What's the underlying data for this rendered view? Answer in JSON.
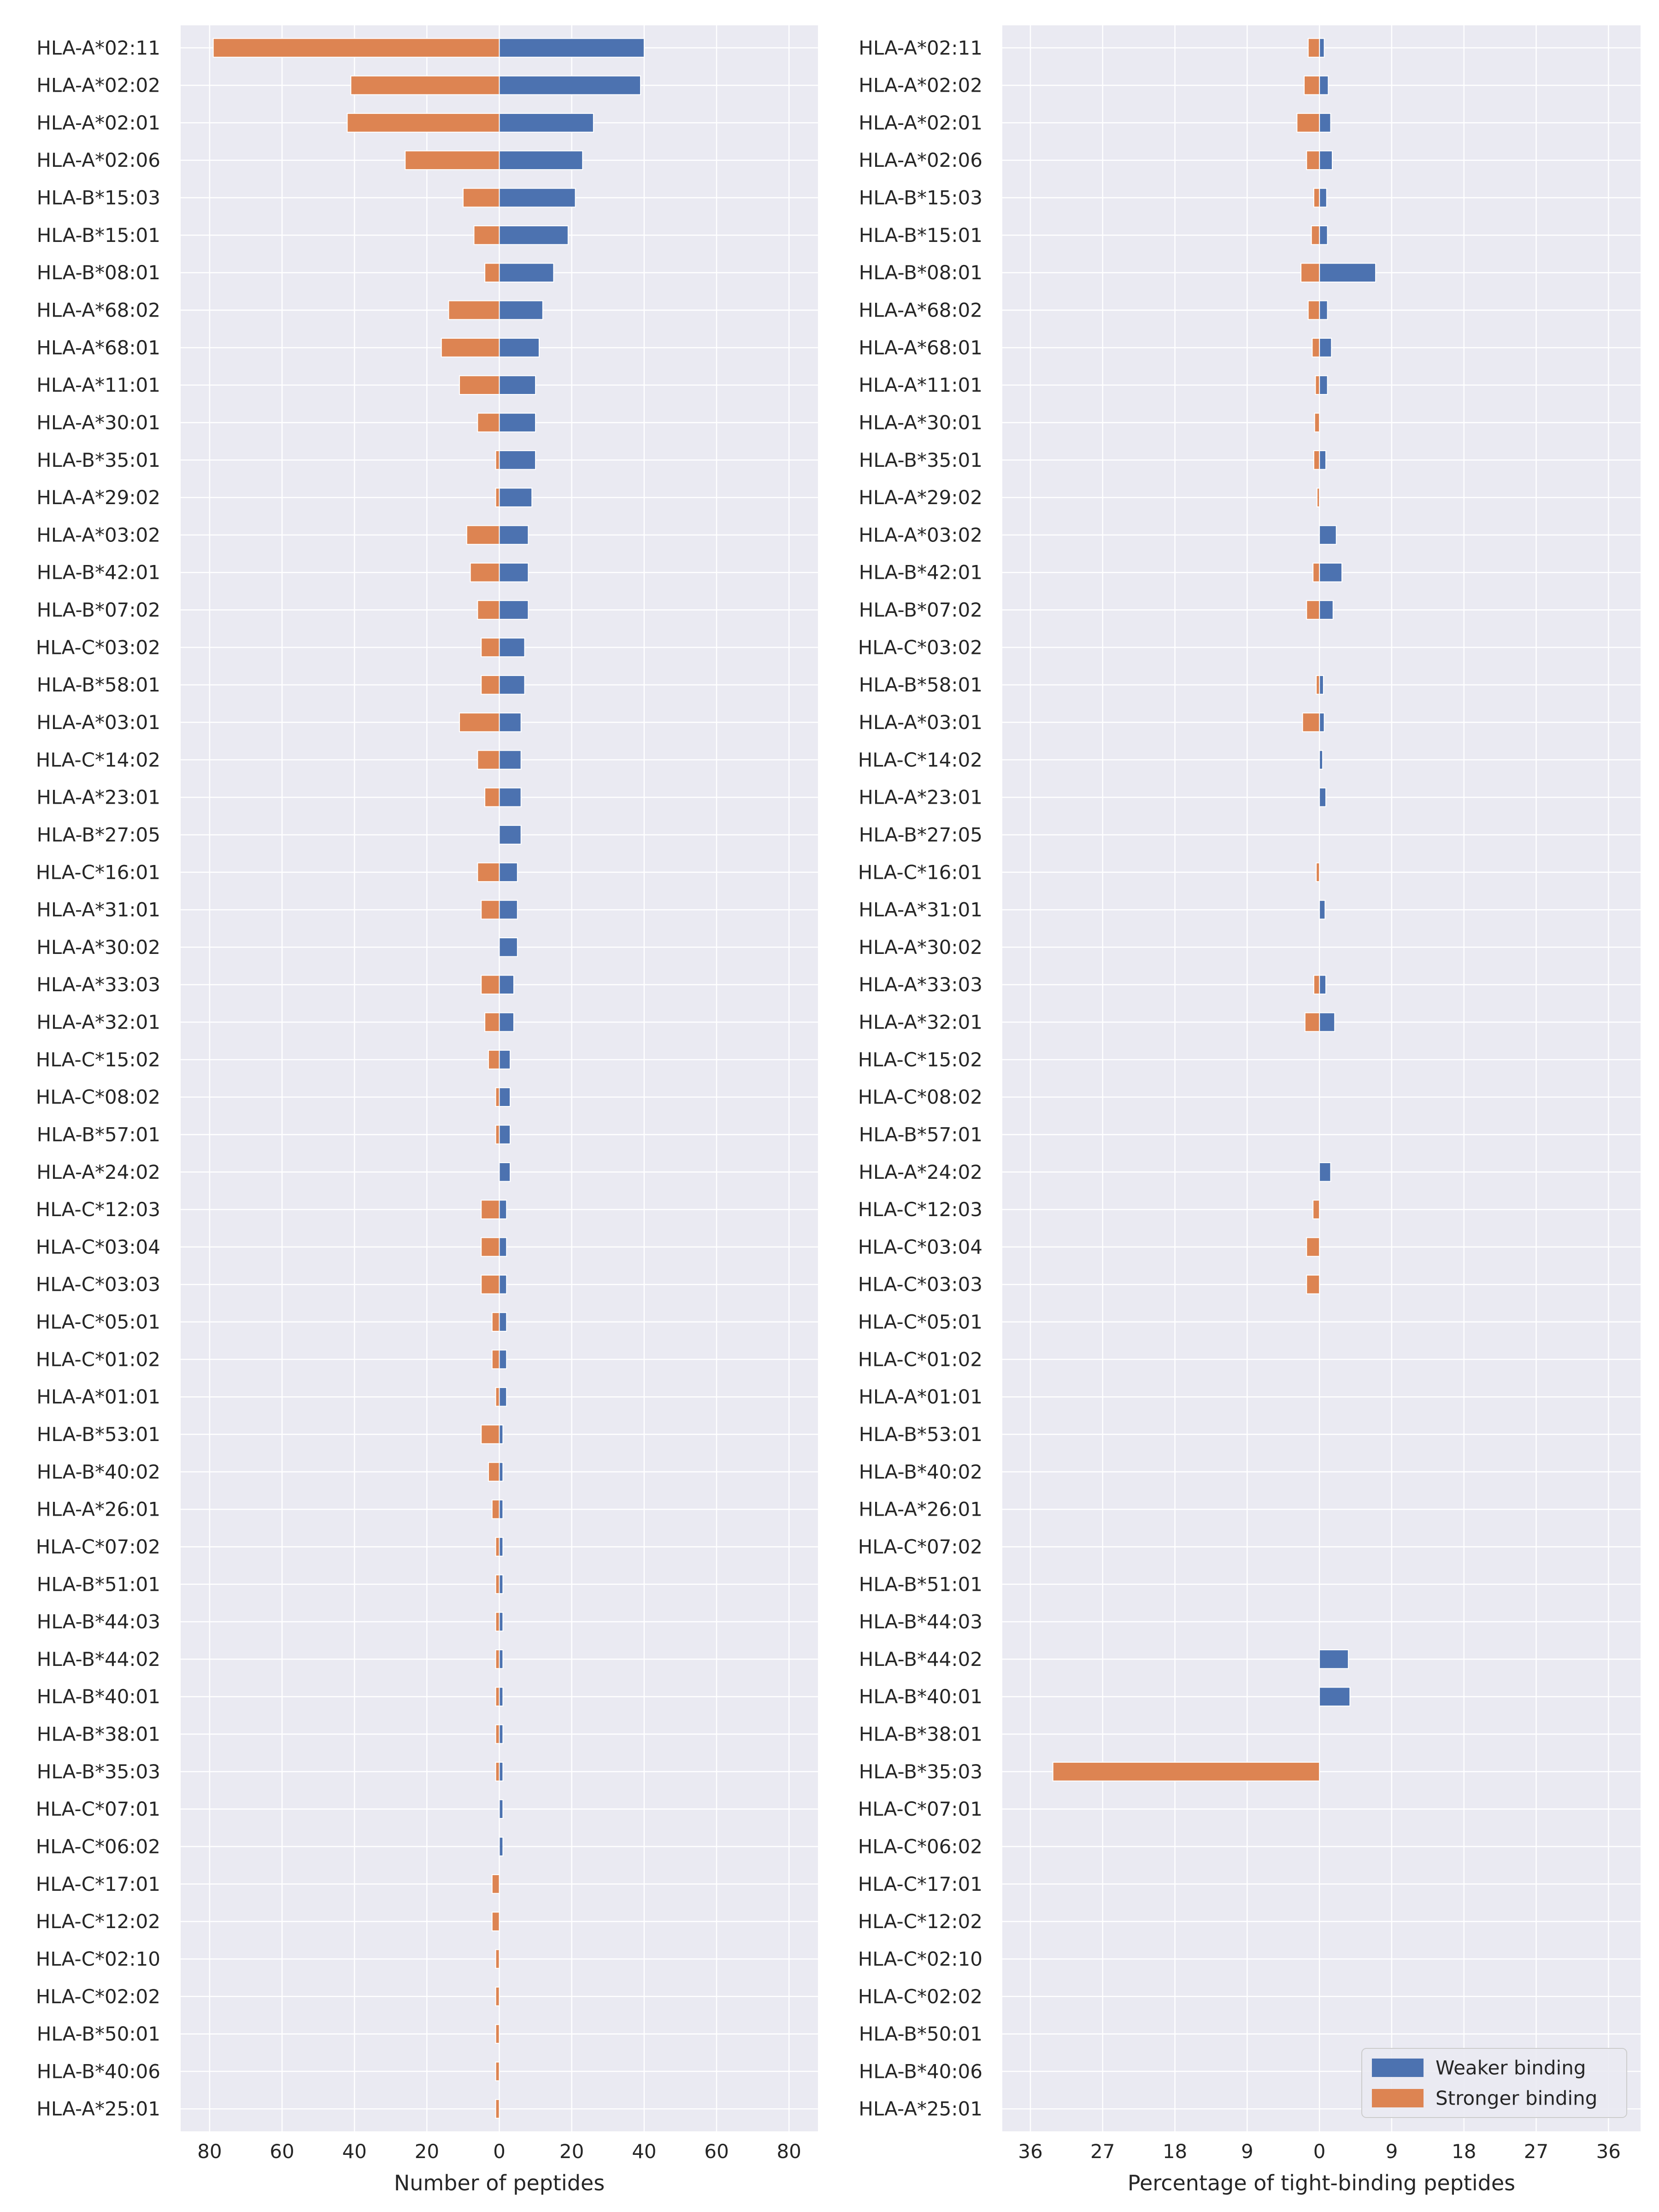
{
  "colors": {
    "weaker": "#4c72b0",
    "stronger": "#dd8452",
    "panel_bg": "#eaeaf2",
    "grid": "#ffffff",
    "text": "#262626"
  },
  "chart_data": [
    {
      "type": "bar",
      "orientation": "horizontal",
      "layout": "diverging",
      "xlabel": "Number of peptides",
      "xlim": [
        -88,
        88
      ],
      "xtick_values": [
        -80,
        -60,
        -40,
        -20,
        0,
        20,
        40,
        60,
        80
      ],
      "xtick_labels": [
        "80",
        "60",
        "40",
        "20",
        "0",
        "20",
        "40",
        "60",
        "80"
      ],
      "grid": true,
      "categories": [
        "HLA-A*02:11",
        "HLA-A*02:02",
        "HLA-A*02:01",
        "HLA-A*02:06",
        "HLA-B*15:03",
        "HLA-B*15:01",
        "HLA-B*08:01",
        "HLA-A*68:02",
        "HLA-A*68:01",
        "HLA-A*11:01",
        "HLA-A*30:01",
        "HLA-B*35:01",
        "HLA-A*29:02",
        "HLA-A*03:02",
        "HLA-B*42:01",
        "HLA-B*07:02",
        "HLA-C*03:02",
        "HLA-B*58:01",
        "HLA-A*03:01",
        "HLA-C*14:02",
        "HLA-A*23:01",
        "HLA-B*27:05",
        "HLA-C*16:01",
        "HLA-A*31:01",
        "HLA-A*30:02",
        "HLA-A*33:03",
        "HLA-A*32:01",
        "HLA-C*15:02",
        "HLA-C*08:02",
        "HLA-B*57:01",
        "HLA-A*24:02",
        "HLA-C*12:03",
        "HLA-C*03:04",
        "HLA-C*03:03",
        "HLA-C*05:01",
        "HLA-C*01:02",
        "HLA-A*01:01",
        "HLA-B*53:01",
        "HLA-B*40:02",
        "HLA-A*26:01",
        "HLA-C*07:02",
        "HLA-B*51:01",
        "HLA-B*44:03",
        "HLA-B*44:02",
        "HLA-B*40:01",
        "HLA-B*38:01",
        "HLA-B*35:03",
        "HLA-C*07:01",
        "HLA-C*06:02",
        "HLA-C*17:01",
        "HLA-C*12:02",
        "HLA-C*02:10",
        "HLA-C*02:02",
        "HLA-B*50:01",
        "HLA-B*40:06",
        "HLA-A*25:01"
      ],
      "series": [
        {
          "name": "Weaker binding",
          "color": "#4c72b0",
          "direction": "right",
          "values": [
            40,
            39,
            26,
            23,
            21,
            19,
            15,
            12,
            11,
            10,
            10,
            10,
            9,
            8,
            8,
            8,
            7,
            7,
            6,
            6,
            6,
            6,
            5,
            5,
            5,
            4,
            4,
            3,
            3,
            3,
            3,
            2,
            2,
            2,
            2,
            2,
            2,
            1,
            1,
            1,
            1,
            1,
            1,
            1,
            1,
            1,
            1,
            1,
            1,
            0,
            0,
            0,
            0,
            0,
            0,
            0
          ]
        },
        {
          "name": "Stronger binding",
          "color": "#dd8452",
          "direction": "left",
          "values": [
            79,
            41,
            42,
            26,
            10,
            7,
            4,
            14,
            16,
            11,
            6,
            1,
            1,
            9,
            8,
            6,
            5,
            5,
            11,
            6,
            4,
            0,
            6,
            5,
            0,
            5,
            4,
            3,
            1,
            1,
            0,
            5,
            5,
            5,
            2,
            2,
            1,
            5,
            3,
            2,
            1,
            1,
            1,
            1,
            1,
            1,
            1,
            0,
            0,
            2,
            2,
            1,
            1,
            1,
            1,
            1
          ]
        }
      ]
    },
    {
      "type": "bar",
      "orientation": "horizontal",
      "layout": "diverging",
      "xlabel": "Percentage of tight-binding peptides",
      "xlim": [
        -39.5,
        40
      ],
      "xtick_values": [
        -36,
        -27,
        -18,
        -9,
        0,
        9,
        18,
        27,
        36
      ],
      "xtick_labels": [
        "36",
        "27",
        "18",
        "9",
        "0",
        "9",
        "18",
        "27",
        "36"
      ],
      "grid": true,
      "legend": {
        "position": "bottom-right",
        "entries": [
          "Weaker binding",
          "Stronger binding"
        ]
      },
      "categories": [
        "HLA-A*02:11",
        "HLA-A*02:02",
        "HLA-A*02:01",
        "HLA-A*02:06",
        "HLA-B*15:03",
        "HLA-B*15:01",
        "HLA-B*08:01",
        "HLA-A*68:02",
        "HLA-A*68:01",
        "HLA-A*11:01",
        "HLA-A*30:01",
        "HLA-B*35:01",
        "HLA-A*29:02",
        "HLA-A*03:02",
        "HLA-B*42:01",
        "HLA-B*07:02",
        "HLA-C*03:02",
        "HLA-B*58:01",
        "HLA-A*03:01",
        "HLA-C*14:02",
        "HLA-A*23:01",
        "HLA-B*27:05",
        "HLA-C*16:01",
        "HLA-A*31:01",
        "HLA-A*30:02",
        "HLA-A*33:03",
        "HLA-A*32:01",
        "HLA-C*15:02",
        "HLA-C*08:02",
        "HLA-B*57:01",
        "HLA-A*24:02",
        "HLA-C*12:03",
        "HLA-C*03:04",
        "HLA-C*03:03",
        "HLA-C*05:01",
        "HLA-C*01:02",
        "HLA-A*01:01",
        "HLA-B*53:01",
        "HLA-B*40:02",
        "HLA-A*26:01",
        "HLA-C*07:02",
        "HLA-B*51:01",
        "HLA-B*44:03",
        "HLA-B*44:02",
        "HLA-B*40:01",
        "HLA-B*38:01",
        "HLA-B*35:03",
        "HLA-C*07:01",
        "HLA-C*06:02",
        "HLA-C*17:01",
        "HLA-C*12:02",
        "HLA-C*02:10",
        "HLA-C*02:02",
        "HLA-B*50:01",
        "HLA-B*40:06",
        "HLA-A*25:01"
      ],
      "series": [
        {
          "name": "Weaker binding",
          "color": "#4c72b0",
          "direction": "right",
          "values": [
            0.6,
            1.1,
            1.4,
            1.6,
            0.9,
            1.0,
            7.0,
            1.0,
            1.5,
            1.0,
            0,
            0.8,
            0,
            2.1,
            2.8,
            1.7,
            0,
            0.5,
            0.6,
            0.4,
            0.8,
            0,
            0,
            0.7,
            0,
            0.8,
            1.9,
            0,
            0,
            0,
            1.4,
            0,
            0,
            0,
            0,
            0,
            0,
            0,
            0,
            0,
            0,
            0,
            0,
            3.6,
            3.8,
            0,
            0,
            0,
            0,
            0,
            0,
            0,
            0,
            0,
            0,
            0
          ]
        },
        {
          "name": "Stronger binding",
          "color": "#dd8452",
          "direction": "left",
          "values": [
            1.4,
            1.9,
            2.8,
            1.6,
            0.7,
            1.0,
            2.3,
            1.4,
            0.9,
            0.5,
            0.6,
            0.7,
            0.3,
            0,
            0.8,
            1.6,
            0,
            0.4,
            2.1,
            0,
            0,
            0,
            0.4,
            0,
            0,
            0.7,
            1.8,
            0,
            0,
            0,
            0,
            0.8,
            1.6,
            1.6,
            0,
            0,
            0,
            0,
            0,
            0,
            0,
            0,
            0,
            0,
            0,
            0,
            33.2,
            0,
            0,
            0,
            0,
            0,
            0,
            0,
            0,
            0
          ]
        }
      ]
    }
  ]
}
